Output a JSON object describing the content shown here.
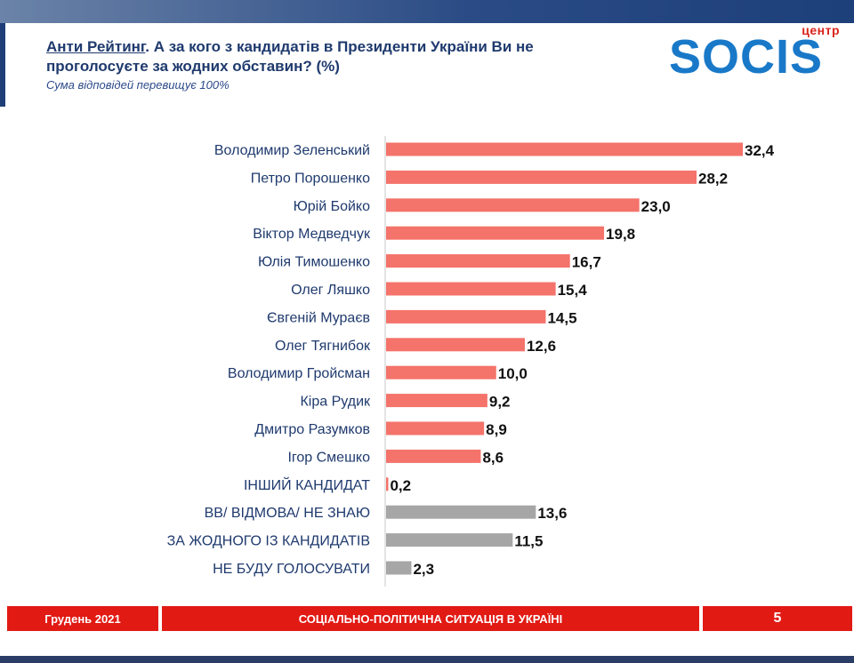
{
  "header": {
    "title_prefix": "Анти Рейтинг",
    "title_rest_line1": ". А за кого з кандидатів в Президенти України Ви не",
    "title_line2": "проголосуєте за жодних обставин? (%)",
    "subtitle": "Сума відповідей перевищує 100%"
  },
  "logo": {
    "small_text": "центр",
    "word": "SOCIS"
  },
  "colors": {
    "candidate_bar": "#f4736a",
    "other_bar": "#a6a6a6",
    "accent_red": "#e11a14",
    "navy": "#1f3a6e"
  },
  "chart_data": {
    "type": "bar",
    "orientation": "horizontal",
    "categories": [
      "Володимир Зеленський",
      "Петро Порошенко",
      "Юрій Бойко",
      "Віктор Медведчук",
      "Юлія Тимошенко",
      "Олег Ляшко",
      "Євгеній Мураєв",
      "Олег Тягнибок",
      "Володимир Гройсман",
      "Кіра Рудик",
      "Дмитро Разумков",
      "Ігор Смешко",
      "ІНШИЙ КАНДИДАТ",
      "ВВ/ ВІДМОВА/ НЕ ЗНАЮ",
      "ЗА ЖОДНОГО ІЗ КАНДИДАТІВ",
      "НЕ БУДУ ГОЛОСУВАТИ"
    ],
    "values": [
      32.4,
      28.2,
      23.0,
      19.8,
      16.7,
      15.4,
      14.5,
      12.6,
      10.0,
      9.2,
      8.9,
      8.6,
      0.2,
      13.6,
      11.5,
      2.3
    ],
    "value_labels": [
      "32,4",
      "28,2",
      "23,0",
      "19,8",
      "16,7",
      "15,4",
      "14,5",
      "12,6",
      "10,0",
      "9,2",
      "8,9",
      "8,6",
      "0,2",
      "13,6",
      "11,5",
      "2,3"
    ],
    "bar_groups": [
      "candidate",
      "candidate",
      "candidate",
      "candidate",
      "candidate",
      "candidate",
      "candidate",
      "candidate",
      "candidate",
      "candidate",
      "candidate",
      "candidate",
      "candidate",
      "other",
      "other",
      "other"
    ],
    "xlim": [
      0,
      34
    ]
  },
  "footer": {
    "date": "Грудень 2021",
    "title": "СОЦІАЛЬНО-ПОЛІТИЧНА СИТУАЦІЯ В УКРАЇНІ",
    "page": "5"
  }
}
